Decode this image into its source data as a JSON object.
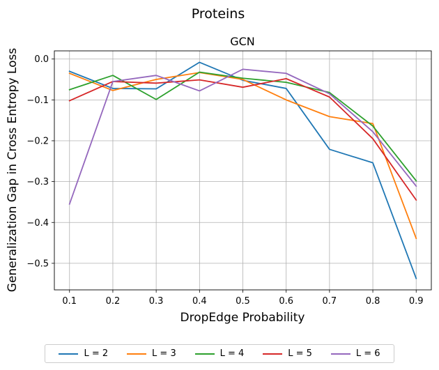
{
  "suptitle": "Proteins",
  "chart_data": {
    "type": "line",
    "title": "GCN",
    "xlabel": "DropEdge Probability",
    "ylabel": "Generalization Gap in Cross Entropy Loss",
    "x": [
      0.1,
      0.2,
      0.3,
      0.4,
      0.5,
      0.6,
      0.7,
      0.8,
      0.9
    ],
    "xtick_labels": [
      "0.1",
      "0.2",
      "0.3",
      "0.4",
      "0.5",
      "0.6",
      "0.7",
      "0.8",
      "0.9"
    ],
    "yticks": [
      0.0,
      -0.1,
      -0.2,
      -0.3,
      -0.4,
      -0.5
    ],
    "ytick_labels": [
      "0.0",
      "−0.1",
      "−0.2",
      "−0.3",
      "−0.4",
      "−0.5"
    ],
    "xlim": [
      0.065,
      0.935
    ],
    "ylim": [
      -0.565,
      0.02
    ],
    "grid": true,
    "legend_position": "bottom-center",
    "series": [
      {
        "name": "L = 2",
        "color": "#1f77b4",
        "values": [
          -0.03,
          -0.072,
          -0.073,
          -0.008,
          -0.052,
          -0.072,
          -0.221,
          -0.254,
          -0.537
        ]
      },
      {
        "name": "L = 3",
        "color": "#ff7f0e",
        "values": [
          -0.035,
          -0.077,
          -0.05,
          -0.033,
          -0.05,
          -0.1,
          -0.141,
          -0.158,
          -0.439
        ]
      },
      {
        "name": "L = 4",
        "color": "#2ca02c",
        "values": [
          -0.075,
          -0.04,
          -0.099,
          -0.032,
          -0.047,
          -0.057,
          -0.082,
          -0.164,
          -0.298
        ]
      },
      {
        "name": "L = 5",
        "color": "#d62728",
        "values": [
          -0.102,
          -0.055,
          -0.059,
          -0.051,
          -0.069,
          -0.048,
          -0.093,
          -0.195,
          -0.345
        ]
      },
      {
        "name": "L = 6",
        "color": "#9467bd",
        "values": [
          -0.355,
          -0.055,
          -0.04,
          -0.078,
          -0.025,
          -0.035,
          -0.085,
          -0.178,
          -0.311
        ]
      }
    ]
  }
}
